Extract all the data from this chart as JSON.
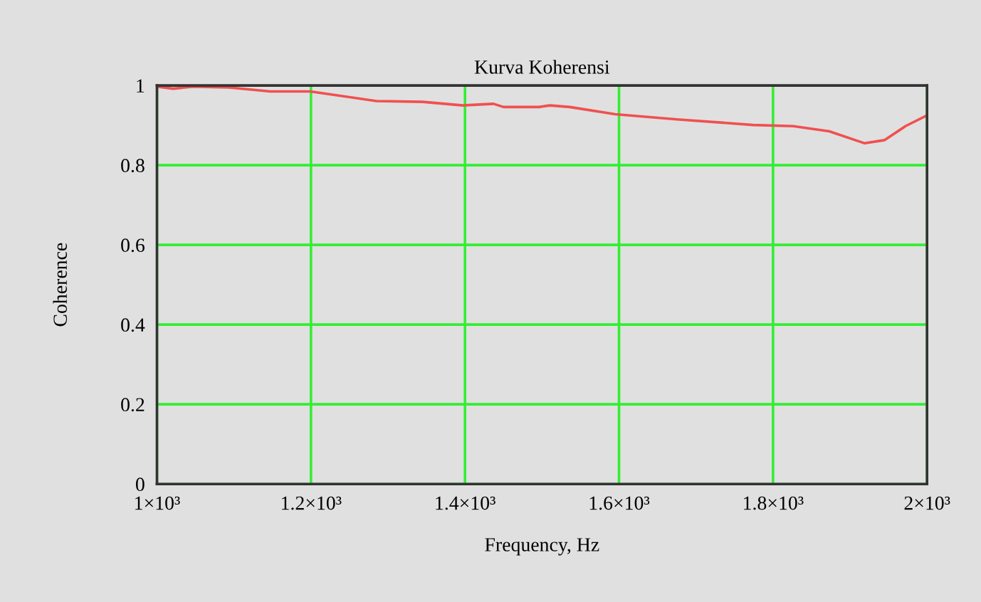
{
  "chart_data": {
    "type": "line",
    "title": "Kurva Koherensi",
    "xlabel": "Frequency, Hz",
    "ylabel": "Coherence",
    "x": [
      1001,
      1021,
      1047,
      1094,
      1147,
      1199,
      1285,
      1345,
      1397,
      1437,
      1450,
      1496,
      1510,
      1536,
      1595,
      1675,
      1774,
      1826,
      1873,
      1919,
      1945,
      1972,
      1998
    ],
    "series": [
      {
        "color": "#f05050",
        "values": [
          0.997,
          0.992,
          0.997,
          0.995,
          0.985,
          0.985,
          0.961,
          0.959,
          0.95,
          0.954,
          0.946,
          0.946,
          0.95,
          0.946,
          0.928,
          0.915,
          0.901,
          0.898,
          0.885,
          0.855,
          0.863,
          0.898,
          0.923
        ]
      }
    ],
    "xlim": [
      1000,
      2000
    ],
    "xticks": [
      {
        "value": 1000,
        "label": "1×10³"
      },
      {
        "value": 1200,
        "label": "1.2×10³"
      },
      {
        "value": 1400,
        "label": "1.4×10³"
      },
      {
        "value": 1600,
        "label": "1.6×10³"
      },
      {
        "value": 1800,
        "label": "1.8×10³"
      },
      {
        "value": 2000,
        "label": "2×10³"
      }
    ],
    "ylim": [
      0,
      1
    ],
    "yticks": [
      0,
      0.2,
      0.4,
      0.6,
      0.8,
      1
    ],
    "grid": true,
    "marker": "none",
    "line_style": "solid"
  }
}
